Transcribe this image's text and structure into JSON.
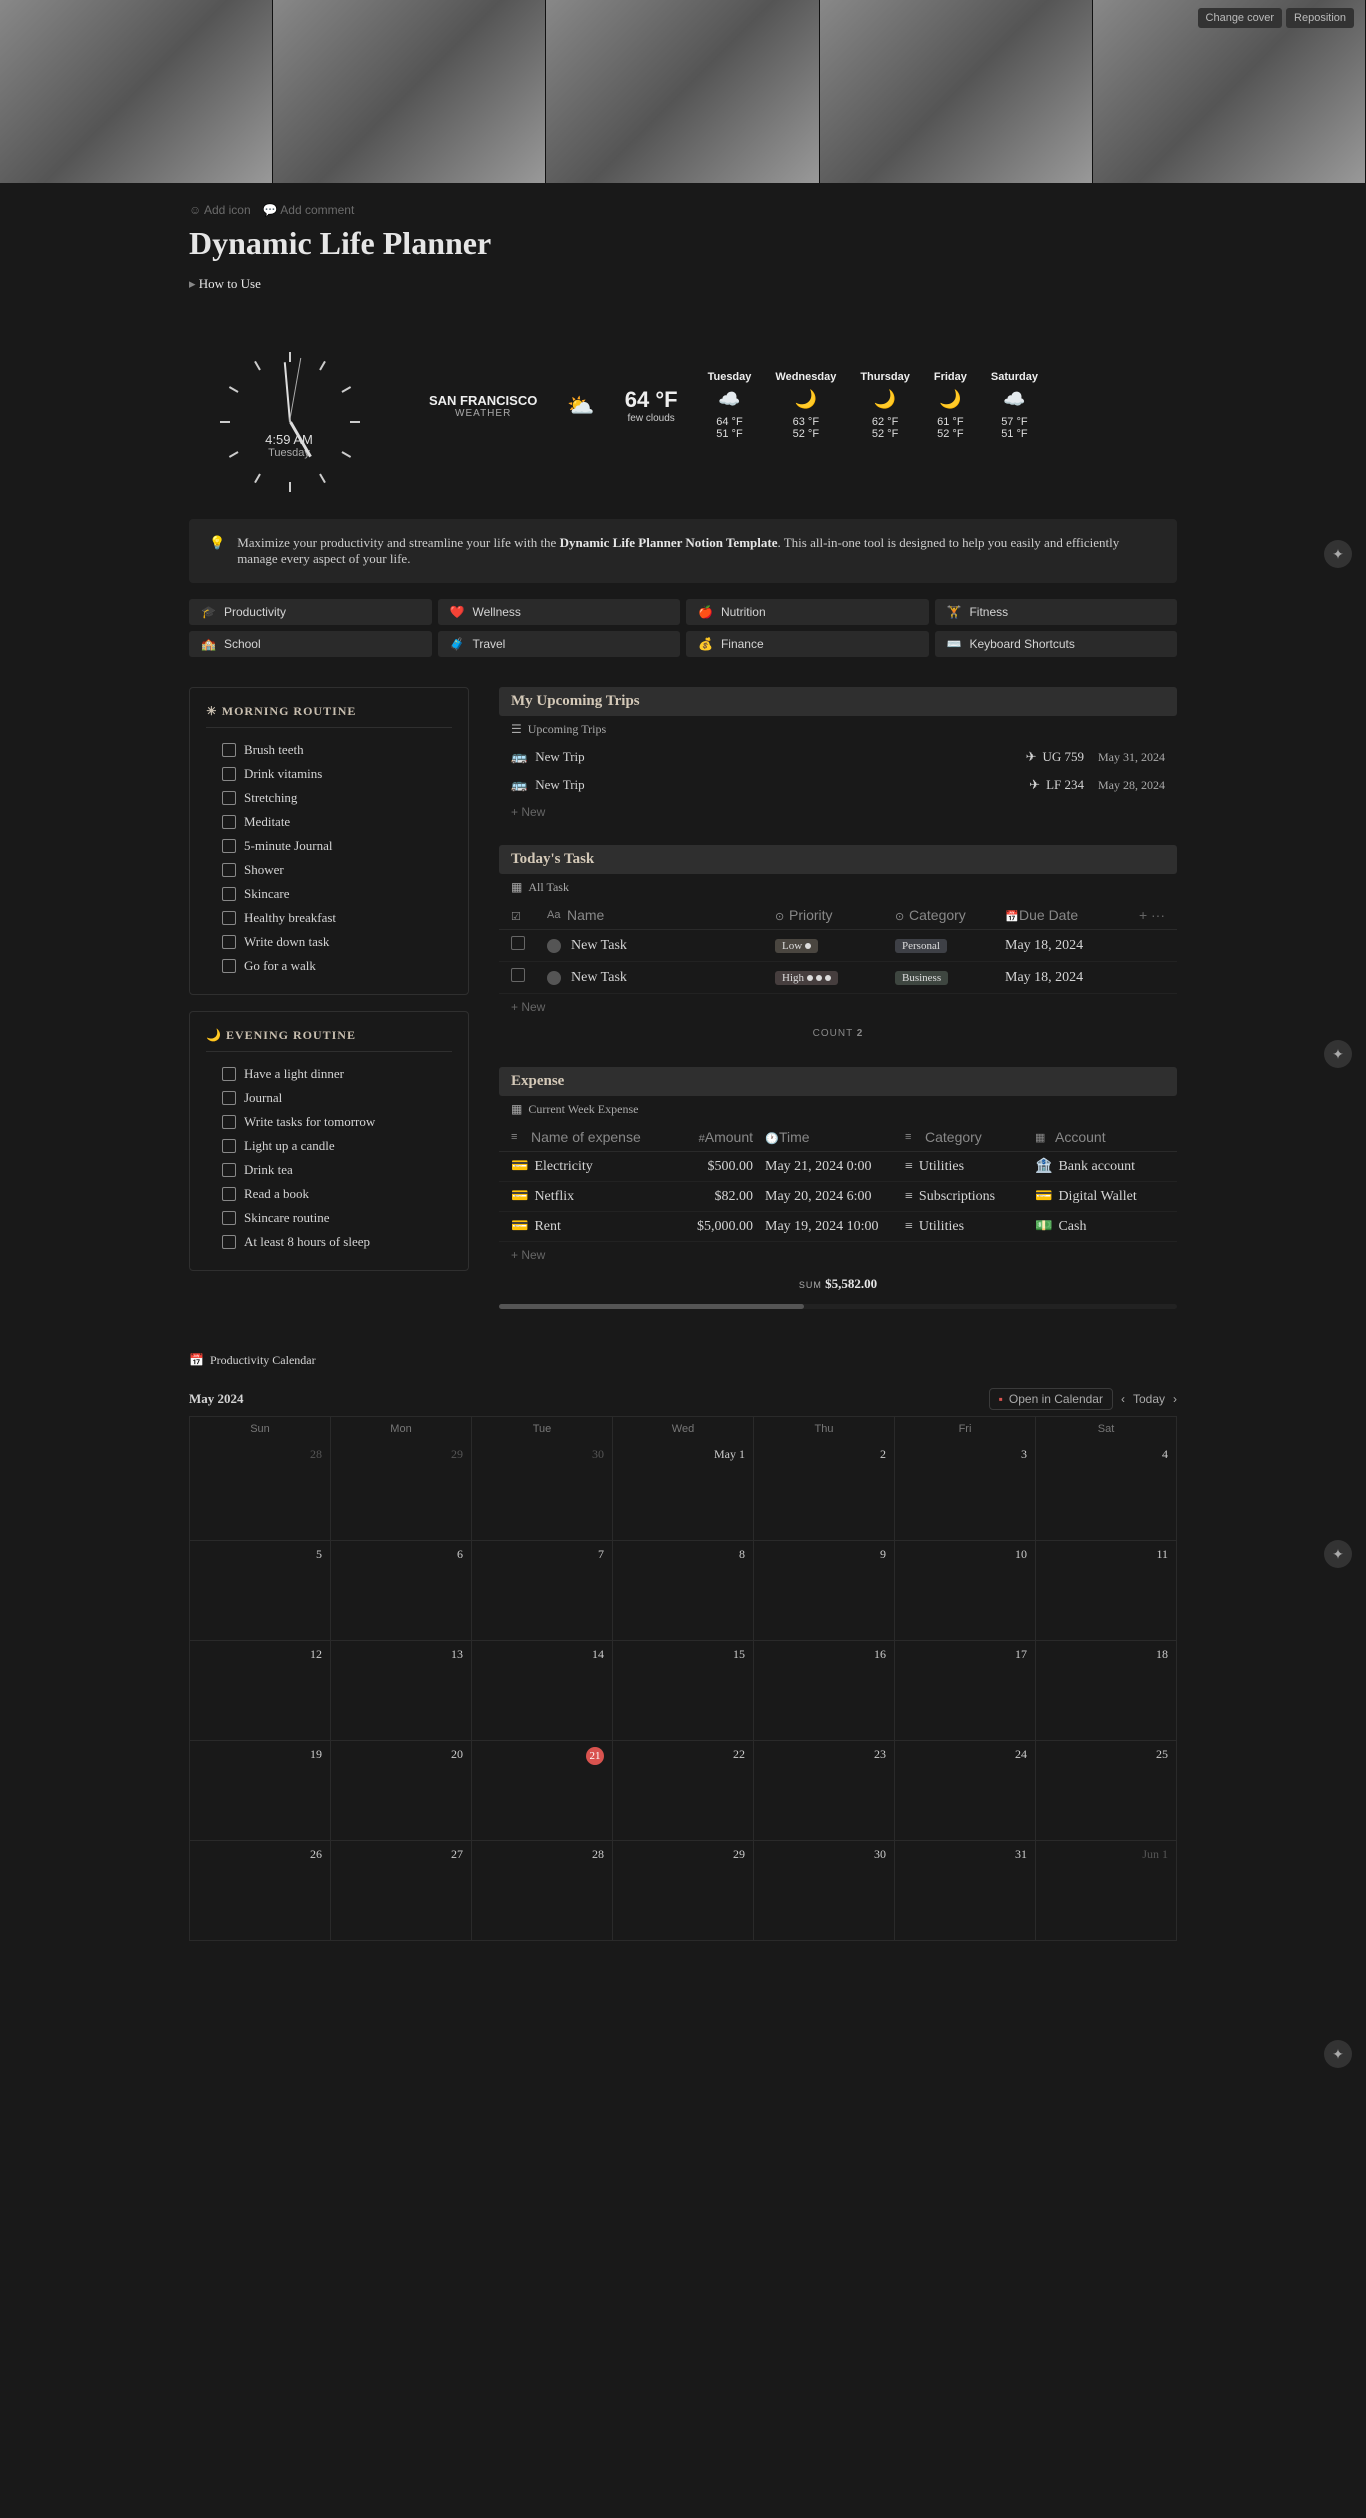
{
  "cover": {
    "change": "Change cover",
    "reposition": "Reposition"
  },
  "pageControls": {
    "addIcon": "Add icon",
    "addComment": "Add comment"
  },
  "title": "Dynamic Life Planner",
  "howto": "How to Use",
  "clock": {
    "time": "4:59 AM",
    "day": "Tuesday"
  },
  "weather": {
    "location": "SAN FRANCISCO",
    "locationSub": "WEATHER",
    "temp": "64 °F",
    "desc": "few clouds",
    "forecast": [
      {
        "day": "Tuesday",
        "icon": "☁️",
        "hi": "64 °F",
        "lo": "51 °F"
      },
      {
        "day": "Wednesday",
        "icon": "🌙",
        "hi": "63 °F",
        "lo": "52 °F"
      },
      {
        "day": "Thursday",
        "icon": "🌙",
        "hi": "62 °F",
        "lo": "52 °F"
      },
      {
        "day": "Friday",
        "icon": "🌙",
        "hi": "61 °F",
        "lo": "52 °F"
      },
      {
        "day": "Saturday",
        "icon": "☁️",
        "hi": "57 °F",
        "lo": "51 °F"
      }
    ]
  },
  "callout": {
    "pre": "Maximize your productivity and streamline your life with the ",
    "bold": "Dynamic Life Planner Notion Template",
    "post": ". This all-in-one tool is designed to help you easily and efficiently manage every aspect of your life."
  },
  "nav": [
    {
      "icon": "🎓",
      "label": "Productivity"
    },
    {
      "icon": "❤️",
      "label": "Wellness"
    },
    {
      "icon": "🍎",
      "label": "Nutrition"
    },
    {
      "icon": "🏋️",
      "label": "Fitness"
    },
    {
      "icon": "🏫",
      "label": "School"
    },
    {
      "icon": "🧳",
      "label": "Travel"
    },
    {
      "icon": "💰",
      "label": "Finance"
    },
    {
      "icon": "⌨️",
      "label": "Keyboard Shortcuts"
    }
  ],
  "morning": {
    "title": "MORNING ROUTINE",
    "items": [
      "Brush teeth",
      "Drink vitamins",
      "Stretching",
      "Meditate",
      "5-minute Journal",
      "Shower",
      "Skincare",
      "Healthy breakfast",
      "Write down task",
      "Go for a walk"
    ]
  },
  "evening": {
    "title": "EVENING ROUTINE",
    "items": [
      "Have a light dinner",
      "Journal",
      "Write tasks for tomorrow",
      "Light up a candle",
      "Drink tea",
      "Read a book",
      "Skincare routine",
      "At least 8 hours of sleep"
    ]
  },
  "trips": {
    "header": "My Upcoming Trips",
    "view": "Upcoming Trips",
    "rows": [
      {
        "name": "New Trip",
        "flight": "UG 759",
        "date": "May 31, 2024"
      },
      {
        "name": "New Trip",
        "flight": "LF 234",
        "date": "May 28, 2024"
      }
    ],
    "new": "+   New"
  },
  "tasks": {
    "header": "Today's Task",
    "view": "All Task",
    "cols": {
      "name": "Name",
      "priority": "Priority",
      "category": "Category",
      "due": "Due Date"
    },
    "rows": [
      {
        "name": "New Task",
        "priority": "Low",
        "category": "Personal",
        "due": "May 18, 2024"
      },
      {
        "name": "New Task",
        "priority": "High",
        "category": "Business",
        "due": "May 18, 2024"
      }
    ],
    "new": "+   New",
    "countLabel": "COUNT",
    "count": "2"
  },
  "expense": {
    "header": "Expense",
    "view": "Current Week Expense",
    "cols": {
      "name": "Name of expense",
      "amount": "Amount",
      "time": "Time",
      "category": "Category",
      "account": "Account"
    },
    "rows": [
      {
        "name": "Electricity",
        "amount": "$500.00",
        "time": "May 21, 2024 0:00",
        "category": "Utilities",
        "account": "Bank account"
      },
      {
        "name": "Netflix",
        "amount": "$82.00",
        "time": "May 20, 2024 6:00",
        "category": "Subscriptions",
        "account": "Digital Wallet"
      },
      {
        "name": "Rent",
        "amount": "$5,000.00",
        "time": "May 19, 2024 10:00",
        "category": "Utilities",
        "account": "Cash"
      }
    ],
    "new": "+   New",
    "sumLabel": "SUM",
    "sum": "$5,582.00"
  },
  "calendar": {
    "view": "Productivity Calendar",
    "month": "May 2024",
    "open": "Open in Calendar",
    "today": "Today",
    "dow": [
      "Sun",
      "Mon",
      "Tue",
      "Wed",
      "Thu",
      "Fri",
      "Sat"
    ],
    "cells": [
      {
        "d": "28",
        "o": true
      },
      {
        "d": "29",
        "o": true
      },
      {
        "d": "30",
        "o": true
      },
      {
        "d": "May 1"
      },
      {
        "d": "2"
      },
      {
        "d": "3"
      },
      {
        "d": "4"
      },
      {
        "d": "5"
      },
      {
        "d": "6"
      },
      {
        "d": "7"
      },
      {
        "d": "8"
      },
      {
        "d": "9"
      },
      {
        "d": "10"
      },
      {
        "d": "11"
      },
      {
        "d": "12"
      },
      {
        "d": "13"
      },
      {
        "d": "14"
      },
      {
        "d": "15"
      },
      {
        "d": "16"
      },
      {
        "d": "17"
      },
      {
        "d": "18"
      },
      {
        "d": "19"
      },
      {
        "d": "20"
      },
      {
        "d": "21",
        "t": true
      },
      {
        "d": "22"
      },
      {
        "d": "23"
      },
      {
        "d": "24"
      },
      {
        "d": "25"
      },
      {
        "d": "26"
      },
      {
        "d": "27"
      },
      {
        "d": "28"
      },
      {
        "d": "29"
      },
      {
        "d": "30"
      },
      {
        "d": "31"
      },
      {
        "d": "Jun 1",
        "o": true
      }
    ]
  }
}
